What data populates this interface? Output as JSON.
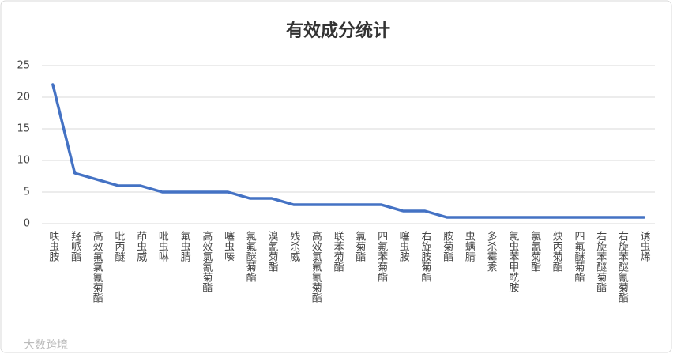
{
  "chart_data": {
    "type": "line",
    "title": "有效成分统计",
    "watermark": "大数跨境",
    "categories": [
      "呋虫胺",
      "羟哌酯",
      "高效氟氯氰菊酯",
      "吡丙醚",
      "茚虫威",
      "吡虫啉",
      "氟虫腈",
      "高效氯氰菊酯",
      "噻虫嗪",
      "氯氟醚菊酯",
      "溴氰菊酯",
      "残杀威",
      "高效氯氟氰菊酯",
      "联苯菊酯",
      "氯菊酯",
      "四氟苯菊酯",
      "噻虫胺",
      "右旋胺菊酯",
      "胺菊酯",
      "虫螨腈",
      "多杀霉素",
      "氯虫苯甲酰胺",
      "氯氰菊酯",
      "炔丙菊酯",
      "四氟醚菊酯",
      "右旋苯醚菊酯",
      "右旋苯醚氰菊酯",
      "诱虫烯"
    ],
    "values": [
      22,
      8,
      7,
      6,
      6,
      5,
      5,
      5,
      5,
      4,
      4,
      3,
      3,
      3,
      3,
      3,
      2,
      2,
      1,
      1,
      1,
      1,
      1,
      1,
      1,
      1,
      1,
      1
    ],
    "color": "#4472c4",
    "ylim": [
      0,
      25
    ],
    "yticks": [
      0,
      5,
      10,
      15,
      20,
      25
    ],
    "grid": true
  }
}
